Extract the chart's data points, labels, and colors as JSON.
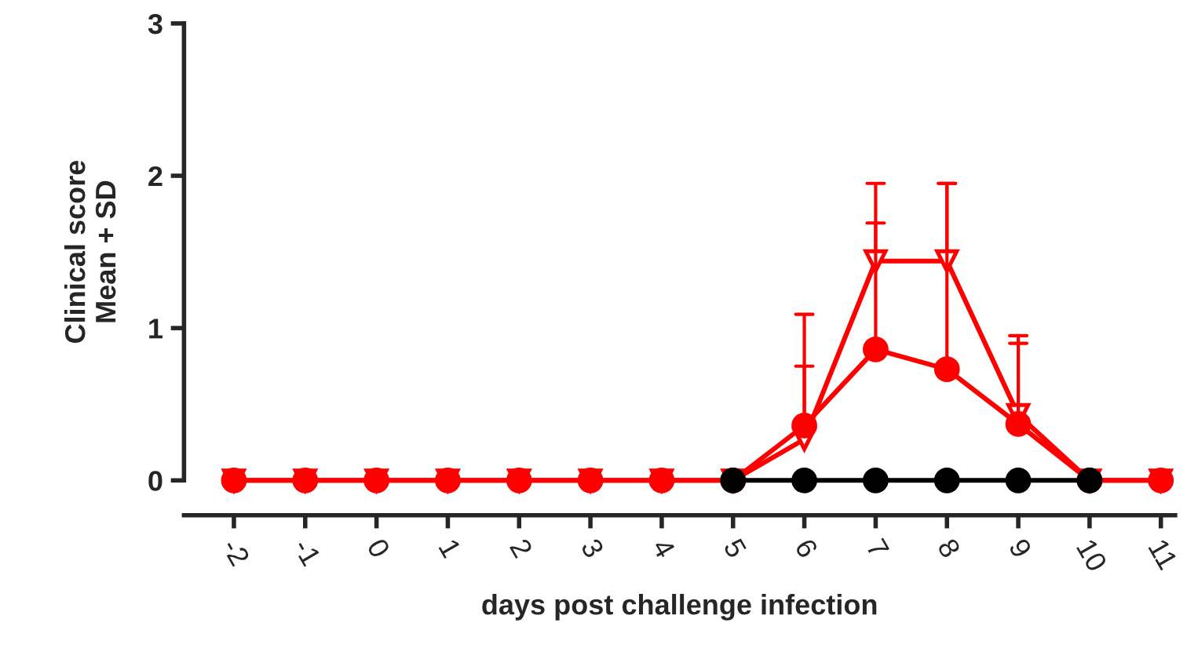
{
  "chart_data": {
    "type": "line",
    "xlabel": "days post challenge infection",
    "ylabel": "Clinical score\nMean + SD",
    "x": [
      -2,
      -1,
      0,
      1,
      2,
      3,
      4,
      5,
      6,
      7,
      8,
      9,
      10,
      11
    ],
    "xlim": [
      -2.7,
      11.2
    ],
    "xticks": [
      -2,
      -1,
      0,
      1,
      2,
      3,
      4,
      5,
      6,
      7,
      8,
      9,
      10,
      11
    ],
    "ylim": [
      0,
      3
    ],
    "yticks": [
      0,
      1,
      2,
      3
    ],
    "grid": false,
    "legend": false,
    "line_style": "solid",
    "series": [
      {
        "color": "#000000",
        "marker": "circle",
        "values": [
          null,
          null,
          null,
          null,
          null,
          null,
          null,
          0,
          0,
          0,
          0,
          0,
          0,
          null
        ]
      },
      {
        "color": "#ff0000",
        "marker": "circle",
        "values": [
          0,
          0,
          0,
          0,
          0,
          0,
          0,
          0,
          0.36,
          0.86,
          0.73,
          0.37,
          0,
          0
        ],
        "errors": [
          null,
          null,
          null,
          null,
          null,
          null,
          null,
          null,
          [
            0.36,
            1.09
          ],
          [
            0.86,
            1.69
          ],
          [
            0.73,
            1.95
          ],
          [
            0.37,
            0.9
          ],
          null,
          null
        ]
      },
      {
        "color": "#ff0000",
        "marker": "triangle",
        "values": [
          0,
          0,
          0,
          0,
          0,
          0,
          0,
          0,
          0.27,
          1.44,
          1.44,
          0.43,
          0,
          0
        ],
        "errors": [
          null,
          null,
          null,
          null,
          null,
          null,
          null,
          null,
          [
            0.27,
            0.75
          ],
          [
            1.44,
            1.95
          ],
          [
            1.44,
            1.95
          ],
          [
            0.43,
            0.95
          ],
          null,
          null
        ]
      }
    ]
  }
}
